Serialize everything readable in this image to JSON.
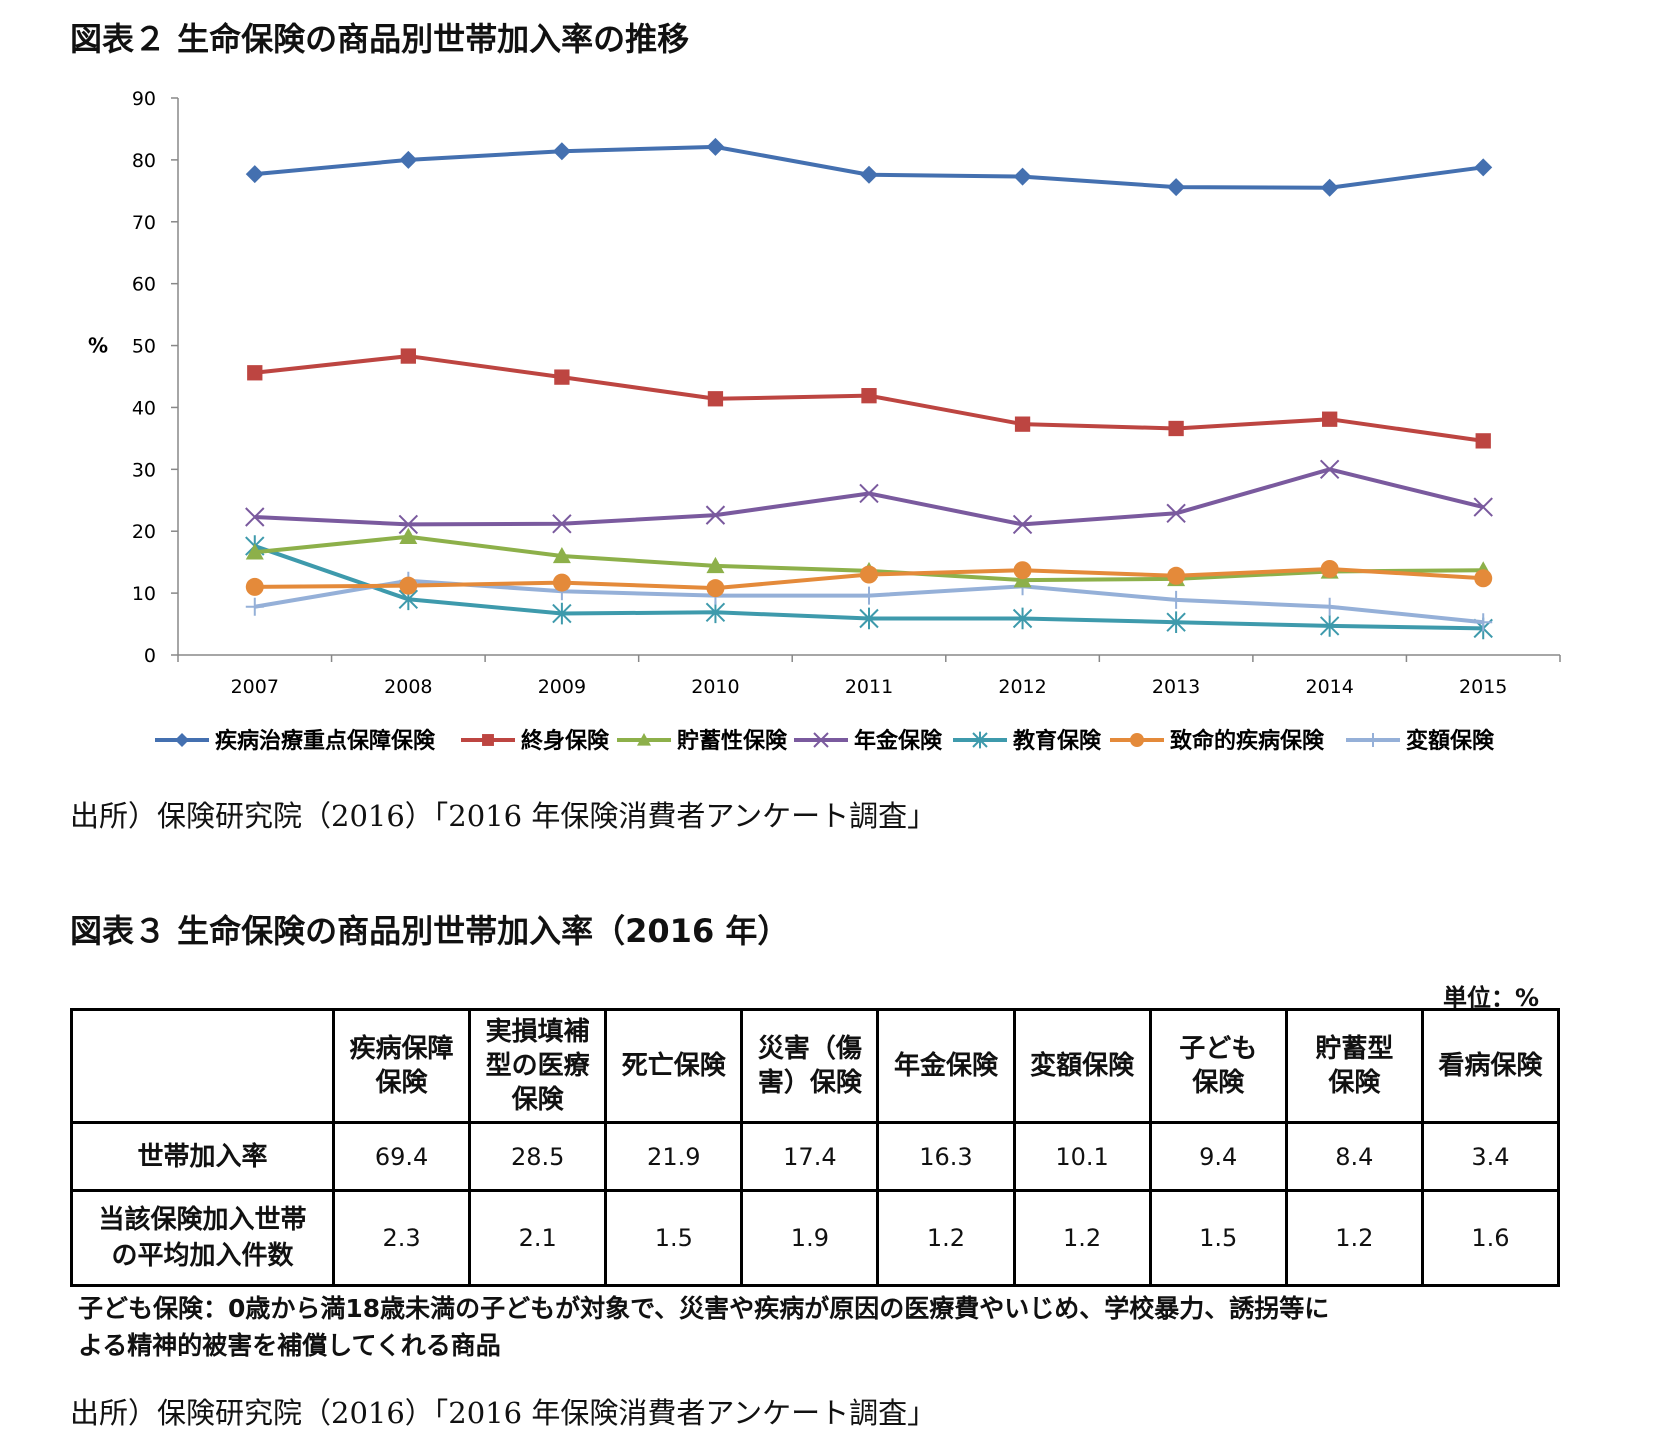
{
  "figure2": {
    "title": "図表２ 生命保険の商品別世帯加入率の推移",
    "source": "出所）保険研究院（2016）「2016 年保険消費者アンケート調査」"
  },
  "chart_data": {
    "type": "line",
    "title": "",
    "xlabel": "",
    "ylabel": "%",
    "ylim": [
      0,
      90
    ],
    "yticks": [
      0,
      10,
      20,
      30,
      40,
      50,
      60,
      70,
      80,
      90
    ],
    "categories": [
      "2007",
      "2008",
      "2009",
      "2010",
      "2011",
      "2012",
      "2013",
      "2014",
      "2015"
    ],
    "legend_position": "bottom",
    "grid": false,
    "series": [
      {
        "name": "疾病治療重点保障保険",
        "color": "#4470b0",
        "marker": "diamond",
        "values": [
          77.7,
          80.0,
          81.4,
          82.1,
          77.6,
          77.3,
          75.6,
          75.5,
          78.8
        ]
      },
      {
        "name": "終身保険",
        "color": "#bd4541",
        "marker": "square",
        "values": [
          45.6,
          48.3,
          44.9,
          41.4,
          41.9,
          37.3,
          36.6,
          38.1,
          34.6
        ]
      },
      {
        "name": "貯蓄性保険",
        "color": "#8db04a",
        "marker": "triangle",
        "values": [
          16.6,
          19.1,
          16.0,
          14.4,
          13.6,
          12.1,
          12.3,
          13.5,
          13.7
        ]
      },
      {
        "name": "年金保険",
        "color": "#7a5a9e",
        "marker": "x",
        "values": [
          22.3,
          21.1,
          21.2,
          22.6,
          26.1,
          21.1,
          22.9,
          30.0,
          23.9
        ]
      },
      {
        "name": "教育保険",
        "color": "#3e9aac",
        "marker": "star",
        "values": [
          17.6,
          9.0,
          6.7,
          6.9,
          5.9,
          5.9,
          5.3,
          4.7,
          4.3
        ]
      },
      {
        "name": "致命的疾病保険",
        "color": "#e48a3a",
        "marker": "circle",
        "values": [
          11.0,
          11.2,
          11.7,
          10.8,
          13.0,
          13.7,
          12.8,
          13.9,
          12.4
        ]
      },
      {
        "name": "変額保険",
        "color": "#95b0d8",
        "marker": "plus",
        "values": [
          7.8,
          12.0,
          10.3,
          9.6,
          9.6,
          11.1,
          8.9,
          7.8,
          5.3
        ]
      }
    ]
  },
  "figure3": {
    "title": "図表３ 生命保険の商品別世帯加入率（2016 年）",
    "unit": "単位：%",
    "headers": [
      "",
      "疾病保障\n保険",
      "実損填補\n型の医療\n保険",
      "死亡保険",
      "災害（傷\n害）保険",
      "年金保険",
      "変額保険",
      "子ども\n保険",
      "貯蓄型\n保険",
      "看病保険"
    ],
    "rows": [
      {
        "label": "世帯加入率",
        "cells": [
          "69.4",
          "28.5",
          "21.9",
          "17.4",
          "16.3",
          "10.1",
          "9.4",
          "8.4",
          "3.4"
        ]
      },
      {
        "label": "当該保険加入世帯\nの平均加入件数",
        "cells": [
          "2.3",
          "2.1",
          "1.5",
          "1.9",
          "1.2",
          "1.2",
          "1.5",
          "1.2",
          "1.6"
        ]
      }
    ],
    "note_lines": [
      "子ども保険：0歳から満18歳未満の子どもが対象で、災害や疾病が原因の医療費やいじめ、学校暴力、誘拐等に",
      "よる精神的被害を補償してくれる商品"
    ],
    "source": "出所）保険研究院（2016）「2016 年保険消費者アンケート調査」"
  }
}
